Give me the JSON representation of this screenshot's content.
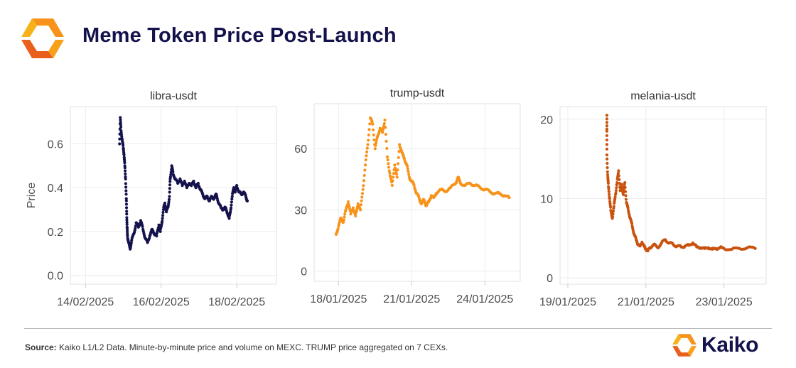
{
  "header": {
    "title": "Meme Token Price Post-Launch"
  },
  "footer": {
    "source_label": "Source:",
    "source_text": " Kaiko L1/L2 Data. Minute-by-minute price and volume on MEXC. TRUMP price aggregated on 7 CEXs.",
    "brand_name": "Kaiko"
  },
  "colors": {
    "title": "#14124b",
    "libra": "#14124b",
    "trump": "#f7931a",
    "melania": "#c8530f",
    "logo_orange": "#f7931a",
    "logo_orange_dark": "#e8601c"
  },
  "chart_data": [
    {
      "type": "scatter",
      "title": "libra-usdt",
      "ylabel": "Price",
      "xlabel": "",
      "ylim": [
        -0.04,
        0.77
      ],
      "xlim": [
        13.6,
        19.05
      ],
      "yticks": [
        0.0,
        0.2,
        0.4,
        0.6
      ],
      "ytick_labels": [
        "0.0",
        "0.2",
        "0.4",
        "0.6"
      ],
      "xticks": [
        14,
        16,
        18
      ],
      "xtick_labels": [
        "14/02/2025",
        "16/02/2025",
        "18/02/2025"
      ],
      "x_unit": "days (February 2025)",
      "color": "#14124b",
      "points": [
        [
          14.9,
          0.6
        ],
        [
          14.92,
          0.72
        ],
        [
          14.94,
          0.66
        ],
        [
          14.97,
          0.62
        ],
        [
          15.0,
          0.58
        ],
        [
          15.02,
          0.55
        ],
        [
          15.04,
          0.5
        ],
        [
          15.06,
          0.44
        ],
        [
          15.08,
          0.35
        ],
        [
          15.09,
          0.28
        ],
        [
          15.1,
          0.22
        ],
        [
          15.11,
          0.18
        ],
        [
          15.14,
          0.15
        ],
        [
          15.18,
          0.12
        ],
        [
          15.22,
          0.16
        ],
        [
          15.28,
          0.19
        ],
        [
          15.34,
          0.24
        ],
        [
          15.4,
          0.22
        ],
        [
          15.46,
          0.25
        ],
        [
          15.52,
          0.21
        ],
        [
          15.58,
          0.17
        ],
        [
          15.64,
          0.15
        ],
        [
          15.7,
          0.18
        ],
        [
          15.76,
          0.21
        ],
        [
          15.82,
          0.19
        ],
        [
          15.88,
          0.18
        ],
        [
          15.94,
          0.23
        ],
        [
          15.98,
          0.2
        ],
        [
          16.02,
          0.24
        ],
        [
          16.06,
          0.3
        ],
        [
          16.1,
          0.33
        ],
        [
          16.14,
          0.29
        ],
        [
          16.18,
          0.31
        ],
        [
          16.22,
          0.36
        ],
        [
          16.24,
          0.44
        ],
        [
          16.28,
          0.5
        ],
        [
          16.32,
          0.46
        ],
        [
          16.38,
          0.44
        ],
        [
          16.44,
          0.42
        ],
        [
          16.5,
          0.44
        ],
        [
          16.56,
          0.41
        ],
        [
          16.62,
          0.43
        ],
        [
          16.68,
          0.4
        ],
        [
          16.74,
          0.42
        ],
        [
          16.8,
          0.41
        ],
        [
          16.86,
          0.43
        ],
        [
          16.92,
          0.4
        ],
        [
          16.98,
          0.42
        ],
        [
          17.04,
          0.39
        ],
        [
          17.1,
          0.37
        ],
        [
          17.16,
          0.35
        ],
        [
          17.22,
          0.36
        ],
        [
          17.28,
          0.34
        ],
        [
          17.34,
          0.36
        ],
        [
          17.4,
          0.35
        ],
        [
          17.46,
          0.37
        ],
        [
          17.52,
          0.33
        ],
        [
          17.58,
          0.31
        ],
        [
          17.64,
          0.3
        ],
        [
          17.7,
          0.31
        ],
        [
          17.76,
          0.28
        ],
        [
          17.8,
          0.26
        ],
        [
          17.84,
          0.3
        ],
        [
          17.88,
          0.36
        ],
        [
          17.92,
          0.4
        ],
        [
          17.96,
          0.38
        ],
        [
          18.0,
          0.41
        ],
        [
          18.06,
          0.38
        ],
        [
          18.12,
          0.37
        ],
        [
          18.18,
          0.38
        ],
        [
          18.24,
          0.36
        ],
        [
          18.28,
          0.34
        ]
      ]
    },
    {
      "type": "scatter",
      "title": "trump-usdt",
      "ylabel": "",
      "xlabel": "",
      "ylim": [
        -5,
        82
      ],
      "xlim": [
        17.0,
        25.45
      ],
      "yticks": [
        0,
        30,
        60
      ],
      "ytick_labels": [
        "0",
        "30",
        "60"
      ],
      "xticks": [
        18,
        21,
        24
      ],
      "xtick_labels": [
        "18/01/2025",
        "21/01/2025",
        "24/01/2025"
      ],
      "x_unit": "days (January 2025)",
      "color": "#f7931a",
      "points": [
        [
          17.9,
          18
        ],
        [
          18.0,
          22
        ],
        [
          18.1,
          26
        ],
        [
          18.2,
          24
        ],
        [
          18.3,
          30
        ],
        [
          18.4,
          34
        ],
        [
          18.5,
          28
        ],
        [
          18.6,
          31
        ],
        [
          18.7,
          27
        ],
        [
          18.8,
          33
        ],
        [
          18.9,
          30
        ],
        [
          19.0,
          40
        ],
        [
          19.1,
          52
        ],
        [
          19.2,
          62
        ],
        [
          19.3,
          75
        ],
        [
          19.4,
          72
        ],
        [
          19.5,
          60
        ],
        [
          19.6,
          66
        ],
        [
          19.7,
          70
        ],
        [
          19.8,
          68
        ],
        [
          19.9,
          74
        ],
        [
          20.0,
          56
        ],
        [
          20.1,
          48
        ],
        [
          20.2,
          42
        ],
        [
          20.3,
          52
        ],
        [
          20.4,
          46
        ],
        [
          20.5,
          62
        ],
        [
          20.6,
          58
        ],
        [
          20.7,
          55
        ],
        [
          20.8,
          52
        ],
        [
          20.9,
          46
        ],
        [
          21.0,
          44
        ],
        [
          21.1,
          42
        ],
        [
          21.2,
          38
        ],
        [
          21.3,
          36
        ],
        [
          21.4,
          33
        ],
        [
          21.5,
          35
        ],
        [
          21.6,
          32
        ],
        [
          21.7,
          34
        ],
        [
          21.8,
          37
        ],
        [
          21.9,
          36
        ],
        [
          22.0,
          38
        ],
        [
          22.2,
          40
        ],
        [
          22.4,
          39
        ],
        [
          22.6,
          41
        ],
        [
          22.8,
          43
        ],
        [
          22.9,
          46
        ],
        [
          23.0,
          43
        ],
        [
          23.2,
          42
        ],
        [
          23.4,
          43
        ],
        [
          23.6,
          42
        ],
        [
          23.8,
          41
        ],
        [
          24.0,
          40
        ],
        [
          24.2,
          39
        ],
        [
          24.4,
          38
        ],
        [
          24.6,
          38
        ],
        [
          24.8,
          37
        ],
        [
          25.0,
          36
        ]
      ]
    },
    {
      "type": "scatter",
      "title": "melania-usdt",
      "ylabel": "",
      "xlabel": "",
      "ylim": [
        -0.8,
        21.6
      ],
      "xlim": [
        18.8,
        24.08
      ],
      "yticks": [
        0,
        10,
        20
      ],
      "ytick_labels": [
        "0",
        "10",
        "20"
      ],
      "xticks": [
        19,
        21,
        23
      ],
      "xtick_labels": [
        "19/01/2025",
        "21/01/2025",
        "23/01/2025"
      ],
      "x_unit": "days (January 2025)",
      "color": "#c8530f",
      "points": [
        [
          20.0,
          20.5
        ],
        [
          20.0,
          18.5
        ],
        [
          20.0,
          15.5
        ],
        [
          20.02,
          13
        ],
        [
          20.04,
          11.5
        ],
        [
          20.07,
          10
        ],
        [
          20.1,
          8.5
        ],
        [
          20.14,
          7.5
        ],
        [
          20.18,
          9
        ],
        [
          20.22,
          10.5
        ],
        [
          20.26,
          12
        ],
        [
          20.3,
          13.5
        ],
        [
          20.34,
          11
        ],
        [
          20.38,
          11.8
        ],
        [
          20.42,
          10.5
        ],
        [
          20.46,
          12
        ],
        [
          20.5,
          9.5
        ],
        [
          20.55,
          8.5
        ],
        [
          20.6,
          7.5
        ],
        [
          20.65,
          6.5
        ],
        [
          20.7,
          5.5
        ],
        [
          20.75,
          4.8
        ],
        [
          20.8,
          4.2
        ],
        [
          20.85,
          4.0
        ],
        [
          20.9,
          4.5
        ],
        [
          20.95,
          4.0
        ],
        [
          21.0,
          3.6
        ],
        [
          21.05,
          3.4
        ],
        [
          21.1,
          3.8
        ],
        [
          21.2,
          4.2
        ],
        [
          21.3,
          3.8
        ],
        [
          21.4,
          4.4
        ],
        [
          21.5,
          4.8
        ],
        [
          21.6,
          4.4
        ],
        [
          21.7,
          4.2
        ],
        [
          21.8,
          4.0
        ],
        [
          21.9,
          3.9
        ],
        [
          22.0,
          4.0
        ],
        [
          22.1,
          4.1
        ],
        [
          22.2,
          4.4
        ],
        [
          22.3,
          3.9
        ],
        [
          22.4,
          3.8
        ],
        [
          22.5,
          3.7
        ],
        [
          22.6,
          3.8
        ],
        [
          22.7,
          3.6
        ],
        [
          22.8,
          3.7
        ],
        [
          22.9,
          3.8
        ],
        [
          23.0,
          3.7
        ],
        [
          23.2,
          3.6
        ],
        [
          23.4,
          3.7
        ],
        [
          23.6,
          3.8
        ],
        [
          23.8,
          3.7
        ]
      ]
    }
  ]
}
